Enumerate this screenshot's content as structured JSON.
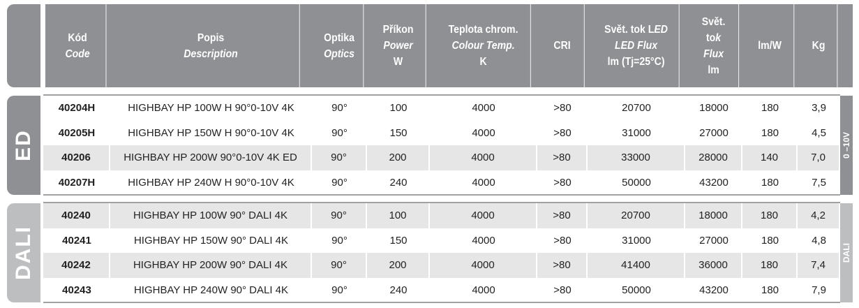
{
  "header": {
    "code": [
      "Kód",
      "Code"
    ],
    "desc": [
      "Popis",
      "Description"
    ],
    "optics": [
      "Optika",
      "Optics"
    ],
    "power": [
      "Příkon",
      "Power",
      "W"
    ],
    "temp": [
      "Teplota chrom.",
      "Colour Temp.",
      "K"
    ],
    "cri": "CRI",
    "ledflux": [
      "Svět. tok L",
      "ED",
      "LED Flux",
      "lm (Tj=25°C)"
    ],
    "flux": [
      "Svět.",
      "to",
      "k",
      "Flux",
      "lm"
    ],
    "lmw": "lm/W",
    "kg": "Kg"
  },
  "groups": [
    {
      "label": "ED",
      "side_label": "0 –10V",
      "tab_color": "#8f9093",
      "rows": [
        [
          "40204H",
          "HIGHBAY HP 100W H 90°0-10V 4K",
          "90°",
          "100",
          "4000",
          ">80",
          "20700",
          "18000",
          "180",
          "3,9"
        ],
        [
          "40205H",
          "HIGHBAY HP 150W H 90°0-10V 4K",
          "90°",
          "150",
          "4000",
          ">80",
          "31000",
          "27000",
          "180",
          "4,5"
        ],
        [
          "40206",
          "HIGHBAY HP 200W 90°0-10V 4K ED",
          "90°",
          "200",
          "4000",
          ">80",
          "33000",
          "28000",
          "140",
          "7,0"
        ],
        [
          "40207H",
          "HIGHBAY HP 240W H 90°0-10V 4K",
          "90°",
          "240",
          "4000",
          ">80",
          "50000",
          "43200",
          "180",
          "7,5"
        ]
      ]
    },
    {
      "label": "DALI",
      "side_label": "DALI",
      "tab_color": "#bdbec0",
      "rows": [
        [
          "40240",
          "HIGHBAY HP 100W 90° DALI 4K",
          "90°",
          "100",
          "4000",
          ">80",
          "20700",
          "18000",
          "180",
          "4,2"
        ],
        [
          "40241",
          "HIGHBAY HP 150W 90° DALI 4K",
          "90°",
          "150",
          "4000",
          ">80",
          "31000",
          "27000",
          "180",
          "4,8"
        ],
        [
          "40242",
          "HIGHBAY HP 200W 90° DALI 4K",
          "90°",
          "200",
          "4000",
          ">80",
          "41400",
          "36000",
          "180",
          "7,4"
        ],
        [
          "40243",
          "HIGHBAY HP 240W 90° DALI 4K",
          "90°",
          "240",
          "4000",
          ">80",
          "50000",
          "43200",
          "180",
          "7,9"
        ]
      ]
    }
  ]
}
